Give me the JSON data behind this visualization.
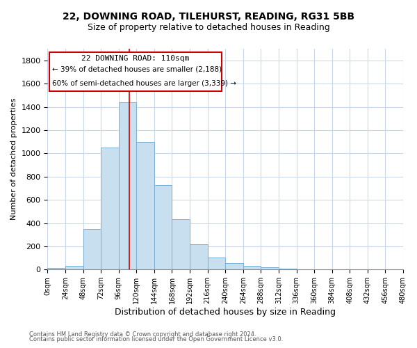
{
  "title_line1": "22, DOWNING ROAD, TILEHURST, READING, RG31 5BB",
  "title_line2": "Size of property relative to detached houses in Reading",
  "xlabel": "Distribution of detached houses by size in Reading",
  "ylabel": "Number of detached properties",
  "bar_color": "#c8dff0",
  "bar_edge_color": "#7aafd4",
  "property_size": 110,
  "vline_color": "#cc0000",
  "annotation_title": "22 DOWNING ROAD: 110sqm",
  "annotation_line1": "← 39% of detached houses are smaller (2,188)",
  "annotation_line2": "60% of semi-detached houses are larger (3,339) →",
  "bin_edges": [
    0,
    24,
    48,
    72,
    96,
    120,
    144,
    168,
    192,
    216,
    240,
    264,
    288,
    312,
    336,
    360,
    384,
    408,
    432,
    456,
    480
  ],
  "bin_counts": [
    15,
    35,
    350,
    1050,
    1440,
    1100,
    725,
    435,
    220,
    105,
    55,
    30,
    18,
    10,
    5,
    2,
    2,
    1,
    0,
    0
  ],
  "ylim": [
    0,
    1900
  ],
  "yticks": [
    0,
    200,
    400,
    600,
    800,
    1000,
    1200,
    1400,
    1600,
    1800
  ],
  "footer_line1": "Contains HM Land Registry data © Crown copyright and database right 2024.",
  "footer_line2": "Contains public sector information licensed under the Open Government Licence v3.0.",
  "background_color": "#ffffff",
  "grid_color": "#c8d8e8"
}
